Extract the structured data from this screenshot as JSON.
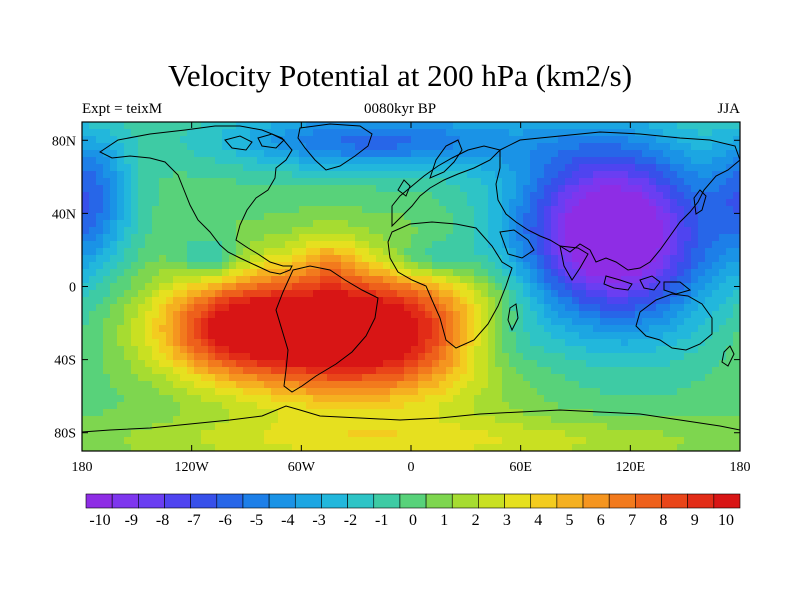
{
  "title": "Velocity Potential at 200 hPa (km2/s)",
  "subtitle_left": "Expt = teixM",
  "subtitle_center": "0080kyr BP",
  "subtitle_right": "JJA",
  "x_ticks": [
    {
      "lon": -180,
      "label": "180"
    },
    {
      "lon": -120,
      "label": "120W"
    },
    {
      "lon": -60,
      "label": "60W"
    },
    {
      "lon": 0,
      "label": "0"
    },
    {
      "lon": 60,
      "label": "60E"
    },
    {
      "lon": 120,
      "label": "120E"
    },
    {
      "lon": 180,
      "label": "180"
    }
  ],
  "y_ticks": [
    {
      "lat": 80,
      "label": "80N"
    },
    {
      "lat": 40,
      "label": "40N"
    },
    {
      "lat": 0,
      "label": "0"
    },
    {
      "lat": -40,
      "label": "40S"
    },
    {
      "lat": -80,
      "label": "80S"
    }
  ],
  "colorbar_labels": [
    "-10",
    "-9",
    "-8",
    "-7",
    "-6",
    "-5",
    "-4",
    "-3",
    "-2",
    "-1",
    "0",
    "1",
    "2",
    "3",
    "4",
    "5",
    "6",
    "7",
    "8",
    "9",
    "10"
  ],
  "colorbar_colors": [
    "#8e2de5",
    "#7e36ee",
    "#6a3ef2",
    "#4f44f0",
    "#3750ea",
    "#2766e8",
    "#1d7fe8",
    "#1a93e6",
    "#1ca6e2",
    "#22b7dc",
    "#2ec4c6",
    "#3ecba4",
    "#58d27a",
    "#7ed64f",
    "#a6dc31",
    "#c9e022",
    "#e6e01f",
    "#f3cc1f",
    "#f5b020",
    "#f5951f",
    "#f27a1d",
    "#ee601b",
    "#e94519",
    "#e22c17",
    "#d81515"
  ],
  "field_centers": [
    {
      "lon": 110,
      "lat": 28,
      "sx": 38,
      "sy": 36,
      "amp": -13
    },
    {
      "lon": 50,
      "lat": -30,
      "sx": 22,
      "sy": 15,
      "amp": -3
    },
    {
      "lon": -30,
      "lat": -25,
      "sx": 55,
      "sy": 26,
      "amp": 13
    },
    {
      "lon": -100,
      "lat": -22,
      "sx": 30,
      "sy": 18,
      "amp": 6
    },
    {
      "lon": -45,
      "lat": 15,
      "sx": 12,
      "sy": 12,
      "amp": 2
    },
    {
      "lon": -110,
      "lat": 15,
      "sx": 12,
      "sy": 8,
      "amp": -3
    },
    {
      "lon": 10,
      "lat": 15,
      "sx": 18,
      "sy": 8,
      "amp": -3
    },
    {
      "lon": -20,
      "lat": 80,
      "sx": 60,
      "sy": 12,
      "amp": -6
    },
    {
      "lon": -175,
      "lat": 50,
      "sx": 15,
      "sy": 25,
      "amp": -5
    },
    {
      "lon": 0,
      "lat": -85,
      "sx": 120,
      "sy": 10,
      "amp": 3
    }
  ]
}
